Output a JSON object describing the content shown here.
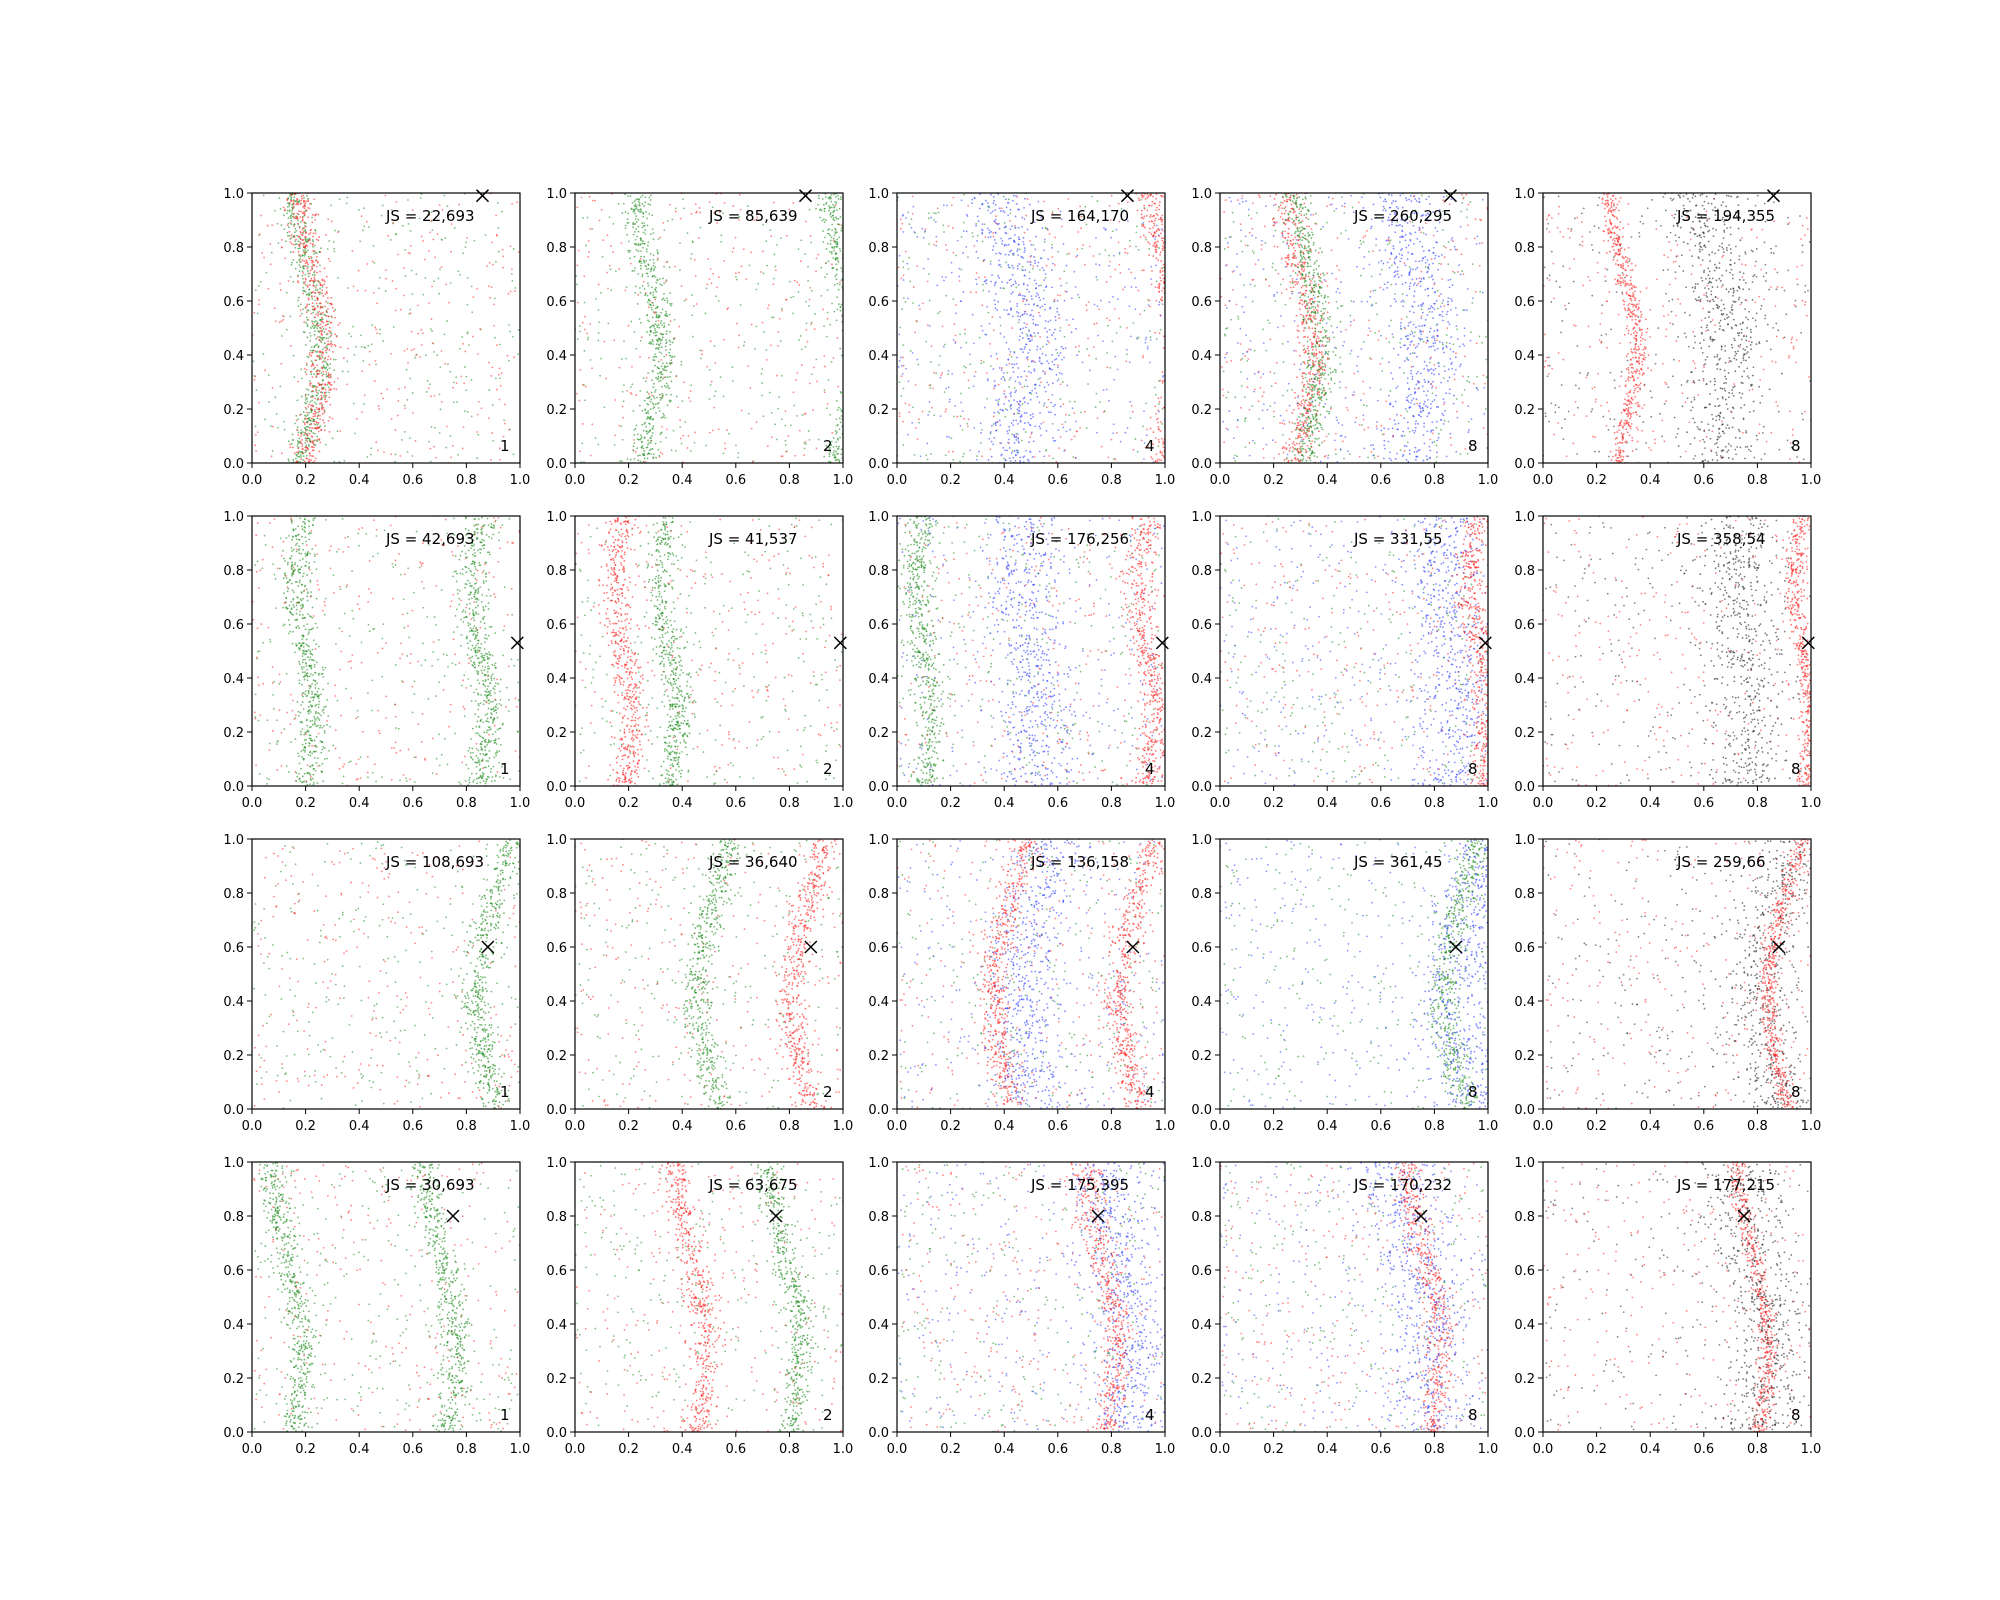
{
  "figure": {
    "rows": 4,
    "cols": 5,
    "xlim": [
      0,
      1
    ],
    "ylim": [
      0,
      1
    ],
    "ticks": [
      "0.0",
      "0.2",
      "0.4",
      "0.6",
      "0.8",
      "1.0"
    ]
  },
  "colors": {
    "green": "#1a8a1a",
    "red": "#ff2020",
    "blue": "#3040ff",
    "black": "#222222"
  },
  "chart_data": [
    {
      "type": "scatter",
      "row": 0,
      "col": 0,
      "label": "JS = 22,693",
      "count": "1",
      "marker": [
        0.86,
        0.99
      ],
      "colors": [
        "green",
        "red"
      ],
      "centers": [
        [
          0.2,
          "green"
        ],
        [
          0.22,
          "red"
        ]
      ],
      "curve": "r0"
    },
    {
      "type": "scatter",
      "row": 0,
      "col": 1,
      "label": "JS = 85,639",
      "count": "2",
      "marker": [
        0.86,
        0.99
      ],
      "colors": [
        "green",
        "red"
      ],
      "centers": [
        [
          0.27,
          "green"
        ],
        [
          1.0,
          "green"
        ]
      ],
      "curve": "r0"
    },
    {
      "type": "scatter",
      "row": 0,
      "col": 2,
      "label": "JS = 164,170",
      "count": "4",
      "marker": [
        0.86,
        0.99
      ],
      "colors": [
        "green",
        "red",
        "blue"
      ],
      "centers": [
        [
          0.45,
          "blue"
        ],
        [
          1.0,
          "red"
        ]
      ],
      "curve": "r0"
    },
    {
      "type": "scatter",
      "row": 0,
      "col": 3,
      "label": "JS = 260,295",
      "count": "8",
      "marker": [
        0.86,
        0.99
      ],
      "colors": [
        "green",
        "red",
        "blue"
      ],
      "centers": [
        [
          0.3,
          "red"
        ],
        [
          0.33,
          "green"
        ],
        [
          0.72,
          "blue"
        ]
      ],
      "curve": "r0"
    },
    {
      "type": "scatter",
      "row": 0,
      "col": 4,
      "label": "JS = 194,355",
      "count": "8",
      "marker": [
        0.86,
        0.99
      ],
      "colors": [
        "black",
        "red"
      ],
      "centers": [
        [
          0.3,
          "red"
        ],
        [
          0.65,
          "black"
        ]
      ],
      "curve": "r0"
    },
    {
      "type": "scatter",
      "row": 1,
      "col": 0,
      "label": "JS = 42,693",
      "count": "1",
      "marker": [
        0.99,
        0.53
      ],
      "colors": [
        "green",
        "red"
      ],
      "centers": [
        [
          0.2,
          "green"
        ],
        [
          0.85,
          "green"
        ]
      ],
      "curve": "r1"
    },
    {
      "type": "scatter",
      "row": 1,
      "col": 1,
      "label": "JS = 41,537",
      "count": "2",
      "marker": [
        0.99,
        0.53
      ],
      "colors": [
        "green",
        "red"
      ],
      "centers": [
        [
          0.18,
          "red"
        ],
        [
          0.35,
          "green"
        ]
      ],
      "curve": "r1"
    },
    {
      "type": "scatter",
      "row": 1,
      "col": 2,
      "label": "JS = 176,256",
      "count": "4",
      "marker": [
        0.99,
        0.53
      ],
      "colors": [
        "green",
        "red",
        "blue"
      ],
      "centers": [
        [
          0.1,
          "green"
        ],
        [
          0.5,
          "blue"
        ],
        [
          0.93,
          "red"
        ]
      ],
      "curve": "r1"
    },
    {
      "type": "scatter",
      "row": 1,
      "col": 3,
      "label": "JS = 331,55",
      "count": "8",
      "marker": [
        0.99,
        0.53
      ],
      "colors": [
        "green",
        "red",
        "blue"
      ],
      "centers": [
        [
          0.85,
          "blue"
        ],
        [
          0.97,
          "red"
        ]
      ],
      "curve": "r1"
    },
    {
      "type": "scatter",
      "row": 1,
      "col": 4,
      "label": "JS = 358,54",
      "count": "8",
      "marker": [
        0.99,
        0.53
      ],
      "colors": [
        "black",
        "red"
      ],
      "centers": [
        [
          0.75,
          "black"
        ],
        [
          0.97,
          "red"
        ]
      ],
      "curve": "r1"
    },
    {
      "type": "scatter",
      "row": 2,
      "col": 0,
      "label": "JS = 108,693",
      "count": "1",
      "marker": [
        0.88,
        0.6
      ],
      "colors": [
        "green",
        "red"
      ],
      "centers": [
        [
          0.88,
          "green"
        ]
      ],
      "curve": "r2"
    },
    {
      "type": "scatter",
      "row": 2,
      "col": 1,
      "label": "JS = 36,640",
      "count": "2",
      "marker": [
        0.88,
        0.6
      ],
      "colors": [
        "green",
        "red"
      ],
      "centers": [
        [
          0.5,
          "green"
        ],
        [
          0.85,
          "red"
        ]
      ],
      "curve": "r2"
    },
    {
      "type": "scatter",
      "row": 2,
      "col": 2,
      "label": "JS = 136,158",
      "count": "4",
      "marker": [
        0.88,
        0.6
      ],
      "colors": [
        "green",
        "red",
        "blue"
      ],
      "centers": [
        [
          0.4,
          "red"
        ],
        [
          0.5,
          "blue"
        ],
        [
          0.87,
          "red"
        ]
      ],
      "curve": "r2"
    },
    {
      "type": "scatter",
      "row": 2,
      "col": 3,
      "label": "JS = 361,45",
      "count": "8",
      "marker": [
        0.88,
        0.6
      ],
      "colors": [
        "green",
        "blue"
      ],
      "centers": [
        [
          0.88,
          "green"
        ],
        [
          0.92,
          "blue"
        ]
      ],
      "curve": "r2"
    },
    {
      "type": "scatter",
      "row": 2,
      "col": 4,
      "label": "JS = 259,66",
      "count": "8",
      "marker": [
        0.88,
        0.6
      ],
      "colors": [
        "black",
        "red"
      ],
      "centers": [
        [
          0.85,
          "black"
        ],
        [
          0.88,
          "red"
        ]
      ],
      "curve": "r2"
    },
    {
      "type": "scatter",
      "row": 3,
      "col": 0,
      "label": "JS = 30,693",
      "count": "1",
      "marker": [
        0.75,
        0.8
      ],
      "colors": [
        "green",
        "red"
      ],
      "centers": [
        [
          0.15,
          "green"
        ],
        [
          0.72,
          "green"
        ]
      ],
      "curve": "r3"
    },
    {
      "type": "scatter",
      "row": 3,
      "col": 1,
      "label": "JS = 63,675",
      "count": "2",
      "marker": [
        0.75,
        0.8
      ],
      "colors": [
        "green",
        "red"
      ],
      "centers": [
        [
          0.8,
          "green"
        ],
        [
          0.45,
          "red"
        ]
      ],
      "curve": "r3"
    },
    {
      "type": "scatter",
      "row": 3,
      "col": 2,
      "label": "JS = 175,395",
      "count": "4",
      "marker": [
        0.75,
        0.8
      ],
      "colors": [
        "green",
        "red",
        "blue"
      ],
      "centers": [
        [
          0.78,
          "red"
        ],
        [
          0.85,
          "blue"
        ]
      ],
      "curve": "r3"
    },
    {
      "type": "scatter",
      "row": 3,
      "col": 3,
      "label": "JS = 170,232",
      "count": "8",
      "marker": [
        0.75,
        0.8
      ],
      "colors": [
        "green",
        "red",
        "blue"
      ],
      "centers": [
        [
          0.78,
          "red"
        ],
        [
          0.75,
          "blue"
        ]
      ],
      "curve": "r3"
    },
    {
      "type": "scatter",
      "row": 3,
      "col": 4,
      "label": "JS = 177,215",
      "count": "8",
      "marker": [
        0.75,
        0.8
      ],
      "colors": [
        "black",
        "red"
      ],
      "centers": [
        [
          0.8,
          "red"
        ],
        [
          0.8,
          "black"
        ]
      ],
      "curve": "r3"
    }
  ]
}
